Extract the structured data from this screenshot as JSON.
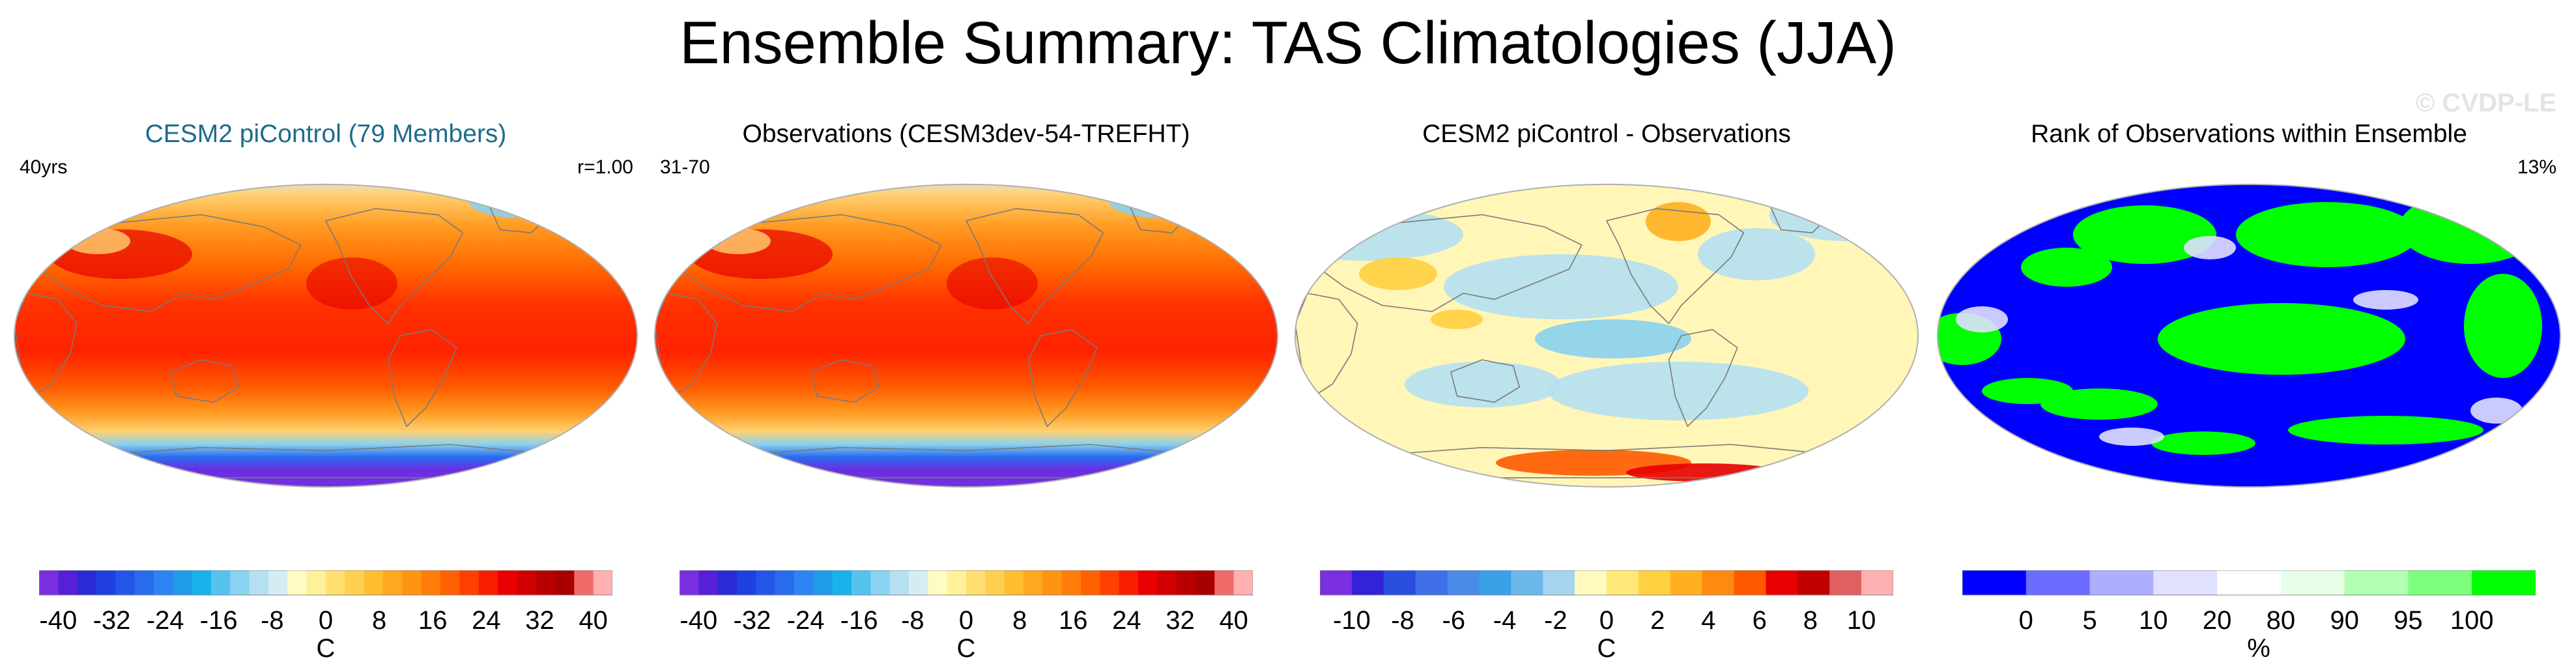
{
  "title": "Ensemble Summary: TAS Climatologies (JJA)",
  "watermark": "© CVDP-LE",
  "panels": [
    {
      "title": "CESM2 piControl (79 Members)",
      "title_color": "#1f6b8c",
      "left_label": "40yrs",
      "right_label": "r=1.00",
      "map_style": "tas"
    },
    {
      "title": "Observations (CESM3dev-54-TREFHT)",
      "title_color": "#000000",
      "left_label": "31-70",
      "right_label": "",
      "map_style": "tas"
    },
    {
      "title": "CESM2 piControl - Observations",
      "title_color": "#000000",
      "left_label": "",
      "right_label": "",
      "map_style": "diff"
    },
    {
      "title": "Rank of Observations within Ensemble",
      "title_color": "#000000",
      "left_label": "",
      "right_label": "13%",
      "map_style": "rank"
    }
  ],
  "chart_data": [
    {
      "type": "heatmap",
      "title": "CESM2 piControl (79 Members)",
      "colorbar": {
        "ticks": [
          -40,
          -32,
          -24,
          -16,
          -8,
          0,
          8,
          16,
          24,
          32,
          40
        ],
        "tick_labels": [
          "-40",
          "-32",
          "-24",
          "-16",
          "-8",
          "0",
          "8",
          "16",
          "24",
          "32",
          "40"
        ],
        "unit": "C",
        "range": [
          -40,
          40
        ],
        "colors": [
          "#7a2fe0",
          "#5520d8",
          "#2a2ad6",
          "#1f40e0",
          "#2555e8",
          "#2a6cef",
          "#2e84f3",
          "#1f9be8",
          "#1ab2ea",
          "#55c3ee",
          "#8ad2ef",
          "#b5e0f2",
          "#d5ecf5",
          "#fffbc4",
          "#fff09a",
          "#ffe070",
          "#ffcf50",
          "#ffbd30",
          "#ffa820",
          "#ff9410",
          "#ff7d08",
          "#ff6000",
          "#ff4000",
          "#f81e00",
          "#e80000",
          "#d00000",
          "#b80000",
          "#a80000",
          "#f06a6a",
          "#ffb0b0"
        ]
      }
    },
    {
      "type": "heatmap",
      "title": "Observations (CESM3dev-54-TREFHT)",
      "colorbar": {
        "ticks": [
          -40,
          -32,
          -24,
          -16,
          -8,
          0,
          8,
          16,
          24,
          32,
          40
        ],
        "tick_labels": [
          "-40",
          "-32",
          "-24",
          "-16",
          "-8",
          "0",
          "8",
          "16",
          "24",
          "32",
          "40"
        ],
        "unit": "C",
        "range": [
          -40,
          40
        ],
        "colors": [
          "#7a2fe0",
          "#5520d8",
          "#2a2ad6",
          "#1f40e0",
          "#2555e8",
          "#2a6cef",
          "#2e84f3",
          "#1f9be8",
          "#1ab2ea",
          "#55c3ee",
          "#8ad2ef",
          "#b5e0f2",
          "#d5ecf5",
          "#fffbc4",
          "#fff09a",
          "#ffe070",
          "#ffcf50",
          "#ffbd30",
          "#ffa820",
          "#ff9410",
          "#ff7d08",
          "#ff6000",
          "#ff4000",
          "#f81e00",
          "#e80000",
          "#d00000",
          "#b80000",
          "#a80000",
          "#f06a6a",
          "#ffb0b0"
        ]
      }
    },
    {
      "type": "heatmap",
      "title": "CESM2 piControl - Observations",
      "colorbar": {
        "ticks": [
          -10,
          -8,
          -6,
          -4,
          -2,
          0,
          2,
          4,
          6,
          8,
          10
        ],
        "tick_labels": [
          "-10",
          "-8",
          "-6",
          "-4",
          "-2",
          "0",
          "2",
          "4",
          "6",
          "8",
          "10"
        ],
        "unit": "C",
        "range": [
          -10,
          10
        ],
        "colors": [
          "#7a2fe0",
          "#3322d8",
          "#2a4ee0",
          "#3f70e8",
          "#4a8ae8",
          "#3aa0e8",
          "#6ab8ec",
          "#a6d4f0",
          "#fffbbe",
          "#ffe878",
          "#ffd040",
          "#ffb020",
          "#ff8a10",
          "#ff5a00",
          "#e80000",
          "#c00000",
          "#e06060",
          "#ffb0b0"
        ]
      }
    },
    {
      "type": "heatmap",
      "title": "Rank of Observations within Ensemble",
      "colorbar": {
        "ticks": [
          0,
          5,
          10,
          20,
          80,
          90,
          95,
          100
        ],
        "tick_labels": [
          "0",
          "5",
          "10",
          "20",
          "80",
          "90",
          "95",
          "100"
        ],
        "unit": "%",
        "colors": [
          "#0000ff",
          "#6b6bff",
          "#aeaeff",
          "#e0e0ff",
          "#ffffff",
          "#e6ffe6",
          "#b3ffb3",
          "#7dff7d",
          "#00ff00"
        ]
      }
    }
  ]
}
